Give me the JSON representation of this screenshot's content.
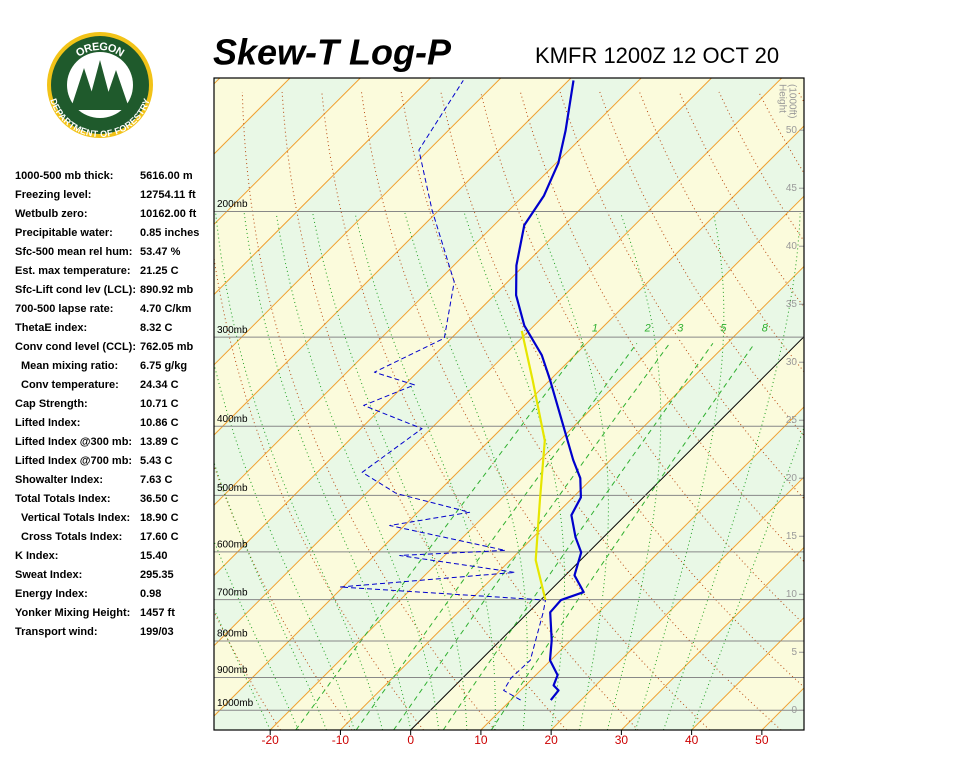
{
  "logo": {
    "top": "OREGON",
    "bottom": "DEPARTMENT OF FORESTRY"
  },
  "indices": [
    [
      "1000-500 mb thick:",
      "5616.00 m"
    ],
    [
      "Freezing level:",
      "12754.11 ft"
    ],
    [
      "Wetbulb zero:",
      "10162.00 ft"
    ],
    [
      "Precipitable water:",
      "0.85 inches"
    ],
    [
      "Sfc-500 mean rel hum:",
      "53.47 %"
    ],
    [
      "Est. max temperature:",
      "21.25 C"
    ],
    [
      "Sfc-Lift cond lev (LCL):",
      "890.92 mb"
    ],
    [
      "700-500 lapse rate:",
      "4.70 C/km"
    ],
    [
      "ThetaE index:",
      "8.32 C"
    ],
    [
      "Conv cond level (CCL):",
      "762.05 mb"
    ],
    [
      "Mean mixing ratio:",
      "6.75 g/kg"
    ],
    [
      "Conv temperature:",
      "24.34 C"
    ],
    [
      "Cap Strength:",
      "10.71 C"
    ],
    [
      "Lifted Index:",
      "10.86 C"
    ],
    [
      "Lifted Index @300 mb:",
      "13.89 C"
    ],
    [
      "Lifted Index @700 mb:",
      "5.43 C"
    ],
    [
      "Showalter Index:",
      "7.63 C"
    ],
    [
      "Total Totals Index:",
      "36.50 C"
    ],
    [
      "Vertical Totals Index:",
      "18.90 C"
    ],
    [
      "Cross Totals Index:",
      "17.60 C"
    ],
    [
      "K Index:",
      "15.40"
    ],
    [
      "Sweat Index:",
      "295.35"
    ],
    [
      "Energy Index:",
      "0.98"
    ],
    [
      "Yonker Mixing Height:",
      "1457 ft"
    ],
    [
      "Transport wind:",
      "199/03"
    ]
  ],
  "chart_data": {
    "type": "skewt",
    "title": "Skew-T Log-P",
    "subtitle": "KMFR 1200Z 12 OCT 20",
    "xlim": [
      -28,
      56
    ],
    "xticks": [
      -20,
      -10,
      0,
      10,
      20,
      30,
      40,
      50
    ],
    "ylim": [
      1066,
      130
    ],
    "log_y": true,
    "yticks": [
      {
        "value": 1000,
        "label": "1000mb"
      },
      {
        "value": 900,
        "label": "900mb"
      },
      {
        "value": 800,
        "label": "800mb"
      },
      {
        "value": 700,
        "label": "700mb"
      },
      {
        "value": 600,
        "label": "600mb"
      },
      {
        "value": 500,
        "label": "500mb"
      },
      {
        "value": 400,
        "label": "400mb"
      },
      {
        "value": 300,
        "label": "300mb"
      },
      {
        "value": 200,
        "label": "200mb"
      }
    ],
    "y2label": [
      "Height",
      "(1000ft)"
    ],
    "y2lim": [
      -1.7,
      54.5
    ],
    "y2ticks": [
      0,
      5,
      10,
      15,
      20,
      25,
      30,
      35,
      40,
      45,
      50
    ],
    "mixing_ratios": [
      1,
      2,
      3,
      5,
      8
    ],
    "series": [
      {
        "color": "#0000cc",
        "style": "solid",
        "pressure": [
          968,
          938,
          923,
          893,
          851,
          798,
          729,
          701,
          683,
          647,
          601,
          572,
          533,
          503,
          473,
          446,
          345,
          318,
          289,
          262,
          238,
          209,
          190,
          171,
          154,
          131
        ],
        "values": [
          15.7,
          15.4,
          14.0,
          13.1,
          9.9,
          7.3,
          3.1,
          2.9,
          5.0,
          1.3,
          -1.0,
          -4.0,
          -7.7,
          -8.9,
          -11.7,
          -15.3,
          -29.9,
          -34.7,
          -41.4,
          -46.9,
          -51.1,
          -55.7,
          -57.1,
          -59.7,
          -63.3,
          -69.3
        ]
      },
      {
        "color": "#0000cc",
        "style": "dashed",
        "pressure": [
          968,
          938,
          902,
          851,
          729,
          701,
          672,
          641,
          607,
          597,
          551,
          528,
          497,
          464,
          403,
          374,
          350,
          336,
          301,
          251,
          199,
          164,
          131
        ],
        "values": [
          11.4,
          7.6,
          6.9,
          7.1,
          2.1,
          0.7,
          -30.4,
          -7.6,
          -26.4,
          -12.1,
          -32.1,
          -22.6,
          -35.7,
          -43.6,
          -41.3,
          -52.9,
          -48.6,
          -56.1,
          -51.0,
          -57.6,
          -71.0,
          -81.4,
          -85.0
        ]
      },
      {
        "color": "#e6e600",
        "style": "solid",
        "pressure": [
          701,
          616,
          508,
          419,
          345,
          294
        ],
        "values": [
          0.7,
          -6.4,
          -14.3,
          -22.1,
          -32.4,
          -41.0
        ]
      }
    ]
  }
}
